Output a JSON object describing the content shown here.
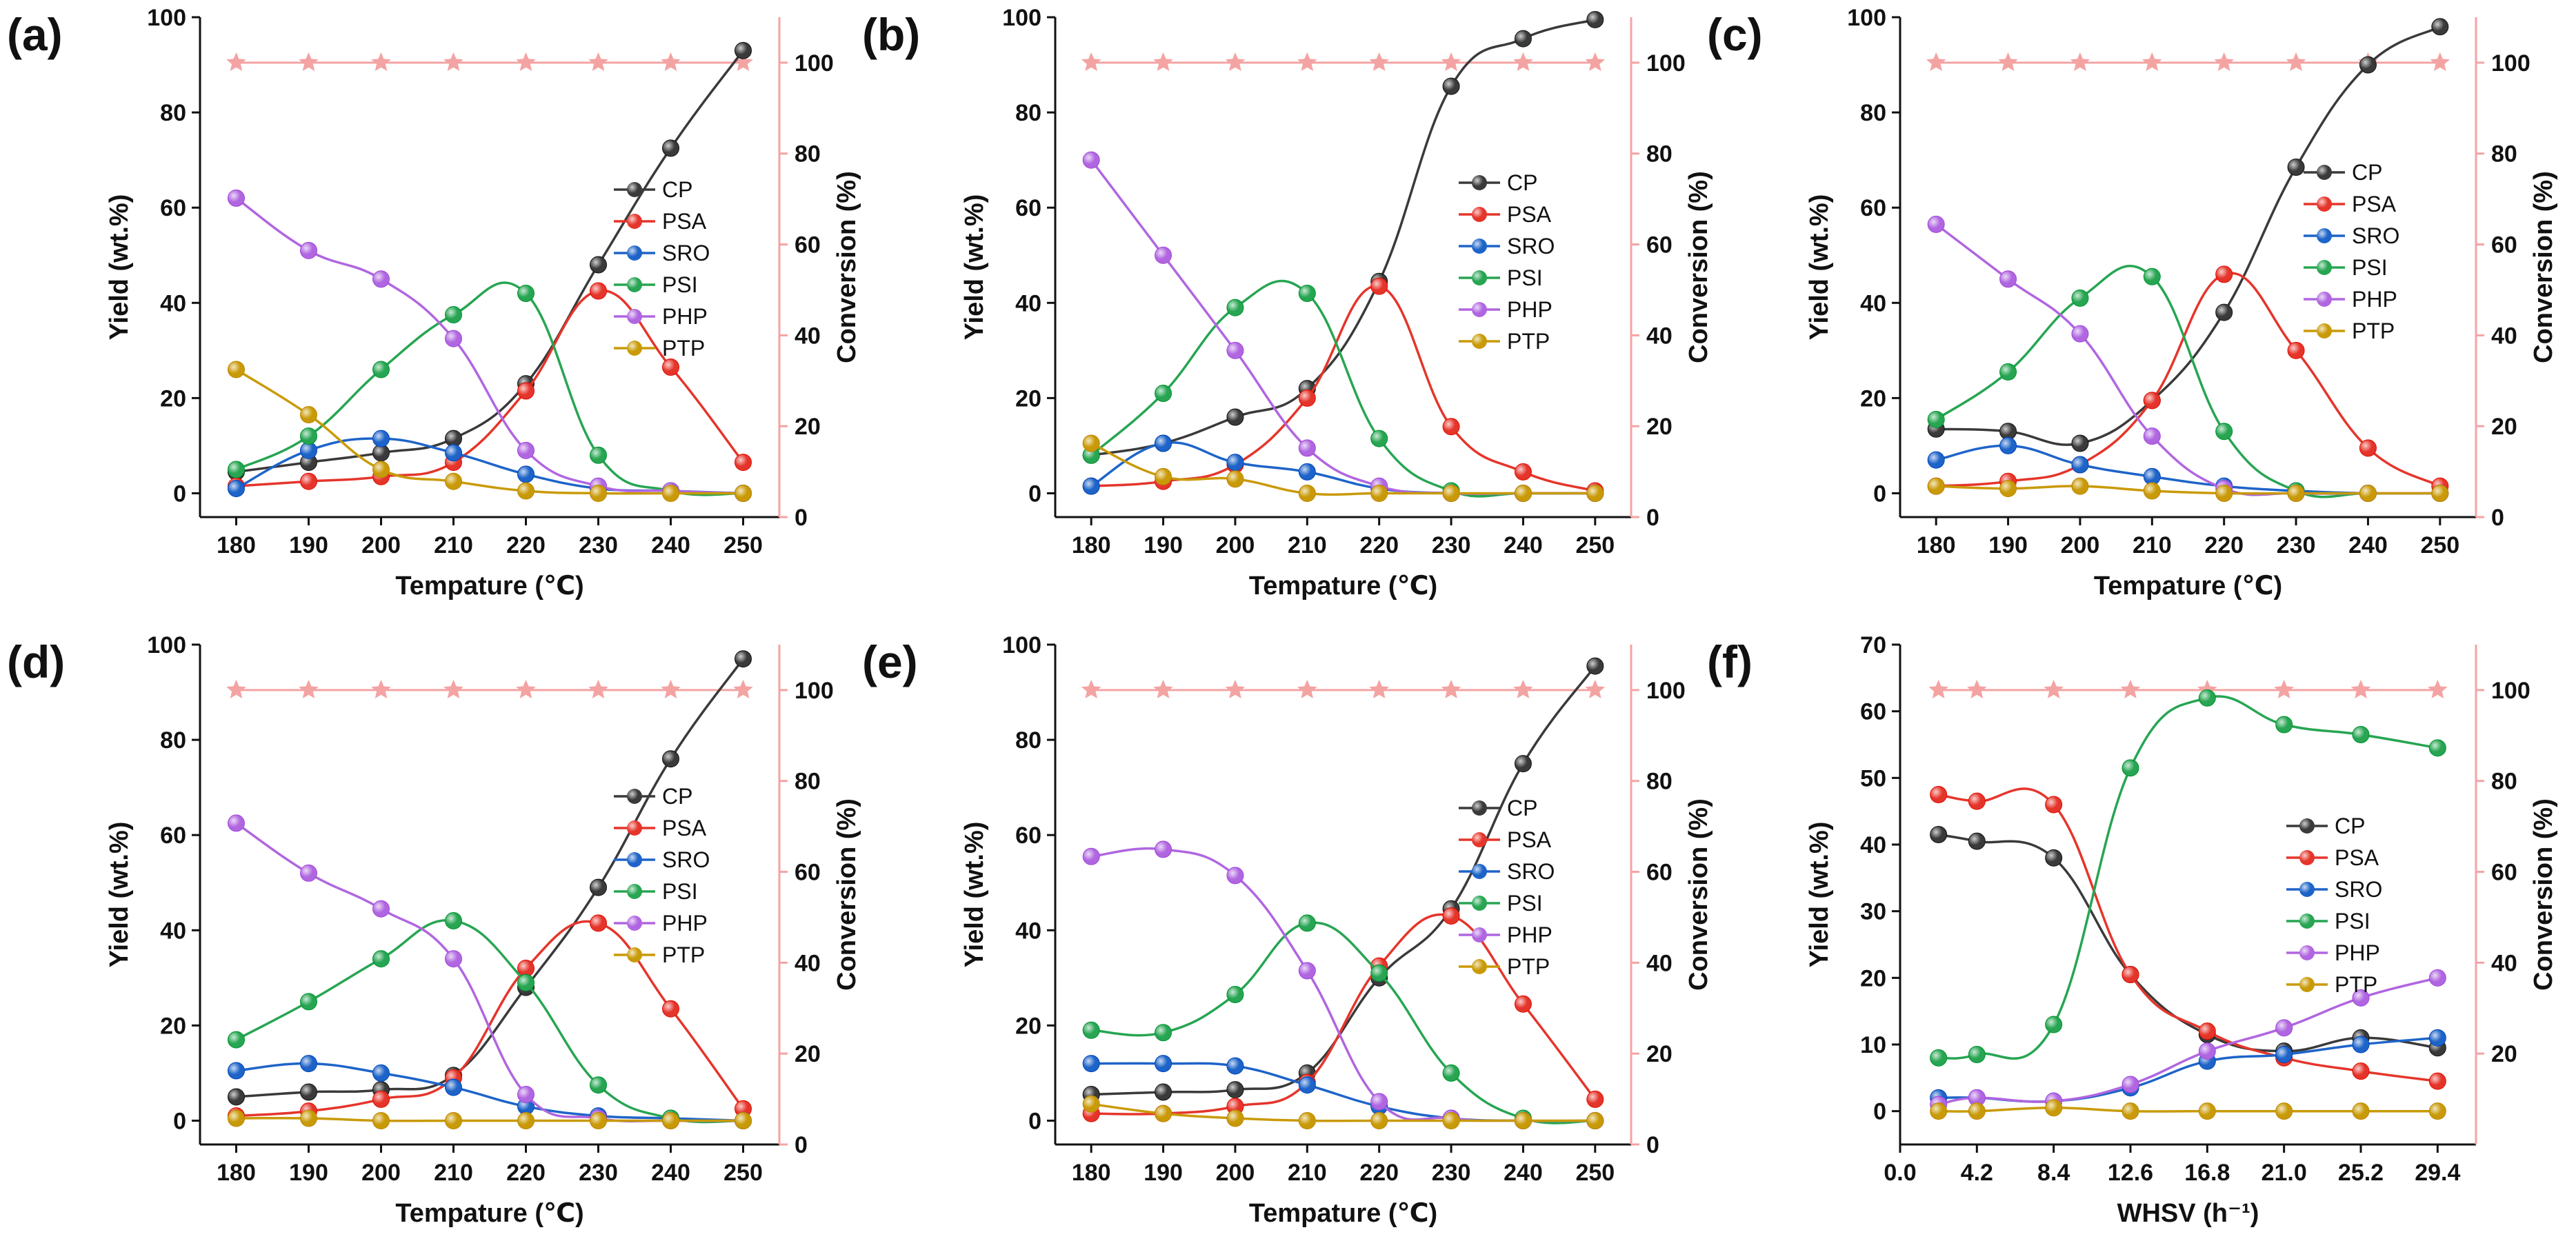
{
  "figure": {
    "series_colors": {
      "CP": "#3a3a3a",
      "PSA": "#e5352b",
      "SRO": "#1e64c8",
      "PSI": "#27a552",
      "PHP": "#b066e0",
      "PTP": "#c99a08"
    },
    "conversion_color": "#f4a3a3"
  },
  "chart_data": [
    {
      "panel": "(a)",
      "type": "line",
      "xlabel": "Tempature (℃)",
      "ylabel": "Yield (wt.%)",
      "y2label": "Conversion (%)",
      "x": [
        180,
        190,
        200,
        210,
        220,
        230,
        240,
        250
      ],
      "xticks": [
        "180",
        "190",
        "200",
        "210",
        "220",
        "230",
        "240",
        "250"
      ],
      "xlim": [
        175,
        255
      ],
      "ylim": [
        -5,
        100
      ],
      "yticks": [
        0,
        20,
        40,
        60,
        80,
        100
      ],
      "y2lim": [
        0,
        110
      ],
      "y2ticks": [
        0,
        20,
        40,
        60,
        80,
        100
      ],
      "legend": [
        "CP",
        "PSA",
        "SRO",
        "PSI",
        "PHP",
        "PTP"
      ],
      "series": [
        {
          "name": "CP",
          "values": [
            4.5,
            6.5,
            8.5,
            11.5,
            23,
            48,
            72.5,
            93
          ]
        },
        {
          "name": "PSA",
          "values": [
            1.5,
            2.5,
            3.5,
            6.5,
            21.5,
            42.5,
            26.5,
            6.5
          ]
        },
        {
          "name": "SRO",
          "values": [
            1,
            9,
            11.5,
            8.5,
            4,
            1,
            0.5,
            0
          ]
        },
        {
          "name": "PSI",
          "values": [
            5,
            12,
            26,
            37.5,
            42,
            8,
            0.5,
            0
          ]
        },
        {
          "name": "PHP",
          "values": [
            62,
            51,
            45,
            32.5,
            9,
            1.5,
            0.5,
            0
          ]
        },
        {
          "name": "PTP",
          "values": [
            26,
            16.5,
            5,
            2.5,
            0.5,
            0,
            0,
            0
          ]
        }
      ],
      "conversion": [
        100,
        100,
        100,
        100,
        100,
        100,
        100,
        100
      ]
    },
    {
      "panel": "(b)",
      "type": "line",
      "xlabel": "Tempature (℃)",
      "ylabel": "Yield (wt.%)",
      "y2label": "Conversion (%)",
      "x": [
        180,
        190,
        200,
        210,
        220,
        230,
        240,
        250
      ],
      "xticks": [
        "180",
        "190",
        "200",
        "210",
        "220",
        "230",
        "240",
        "250"
      ],
      "xlim": [
        175,
        255
      ],
      "ylim": [
        -5,
        100
      ],
      "yticks": [
        0,
        20,
        40,
        60,
        80,
        100
      ],
      "y2lim": [
        0,
        110
      ],
      "y2ticks": [
        0,
        20,
        40,
        60,
        80,
        100
      ],
      "legend": [
        "CP",
        "PSA",
        "SRO",
        "PSI",
        "PHP",
        "PTP"
      ],
      "series": [
        {
          "name": "CP",
          "values": [
            8,
            10.5,
            16,
            22,
            44.5,
            85.5,
            95.5,
            99.5
          ]
        },
        {
          "name": "PSA",
          "values": [
            1.5,
            2.5,
            6,
            20,
            43.5,
            14,
            4.5,
            0.5
          ]
        },
        {
          "name": "SRO",
          "values": [
            1.5,
            10.5,
            6.5,
            4.5,
            1,
            0,
            0,
            0
          ]
        },
        {
          "name": "PSI",
          "values": [
            8,
            21,
            39,
            42,
            11.5,
            0.5,
            0,
            0
          ]
        },
        {
          "name": "PHP",
          "values": [
            70,
            50,
            30,
            9.5,
            1.5,
            0,
            0,
            0
          ]
        },
        {
          "name": "PTP",
          "values": [
            10.5,
            3.5,
            3,
            0,
            0,
            0,
            0,
            0
          ]
        }
      ],
      "conversion": [
        100,
        100,
        100,
        100,
        100,
        100,
        100,
        100
      ]
    },
    {
      "panel": "(c)",
      "type": "line",
      "xlabel": "Tempature (℃)",
      "ylabel": "Yield (wt.%)",
      "y2label": "Conversion (%)",
      "x": [
        180,
        190,
        200,
        210,
        220,
        230,
        240,
        250
      ],
      "xticks": [
        "180",
        "190",
        "200",
        "210",
        "220",
        "230",
        "240",
        "250"
      ],
      "xlim": [
        175,
        255
      ],
      "ylim": [
        -5,
        100
      ],
      "yticks": [
        0,
        20,
        40,
        60,
        80,
        100
      ],
      "y2lim": [
        0,
        110
      ],
      "y2ticks": [
        0,
        20,
        40,
        60,
        80,
        100
      ],
      "legend": [
        "CP",
        "PSA",
        "SRO",
        "PSI",
        "PHP",
        "PTP"
      ],
      "series": [
        {
          "name": "CP",
          "values": [
            13.5,
            13,
            10.5,
            19.5,
            38,
            68.5,
            90,
            98
          ]
        },
        {
          "name": "PSA",
          "values": [
            1.5,
            2.5,
            6,
            19.5,
            46,
            30,
            9.5,
            1.5
          ]
        },
        {
          "name": "SRO",
          "values": [
            7,
            10,
            6,
            3.5,
            1.5,
            0.5,
            0,
            0
          ]
        },
        {
          "name": "PSI",
          "values": [
            15.5,
            25.5,
            41,
            45.5,
            13,
            0.5,
            0,
            0
          ]
        },
        {
          "name": "PHP",
          "values": [
            56.5,
            45,
            33.5,
            12,
            1,
            0,
            0,
            0
          ]
        },
        {
          "name": "PTP",
          "values": [
            1.5,
            1,
            1.5,
            0.5,
            0,
            0,
            0,
            0
          ]
        }
      ],
      "conversion": [
        100,
        100,
        100,
        100,
        100,
        100,
        100,
        100
      ]
    },
    {
      "panel": "(d)",
      "type": "line",
      "xlabel": "Tempature (℃)",
      "ylabel": "Yield (wt.%)",
      "y2label": "Conversion (%)",
      "x": [
        180,
        190,
        200,
        210,
        220,
        230,
        240,
        250
      ],
      "xticks": [
        "180",
        "190",
        "200",
        "210",
        "220",
        "230",
        "240",
        "250"
      ],
      "xlim": [
        175,
        255
      ],
      "ylim": [
        -5,
        100
      ],
      "yticks": [
        0,
        20,
        40,
        60,
        80,
        100
      ],
      "y2lim": [
        0,
        110
      ],
      "y2ticks": [
        0,
        20,
        40,
        60,
        80,
        100
      ],
      "legend": [
        "CP",
        "PSA",
        "SRO",
        "PSI",
        "PHP",
        "PTP"
      ],
      "series": [
        {
          "name": "CP",
          "values": [
            5,
            6,
            6.5,
            9.5,
            28,
            49,
            76,
            97
          ]
        },
        {
          "name": "PSA",
          "values": [
            1,
            2,
            4.5,
            9,
            32,
            41.5,
            23.5,
            2.5
          ]
        },
        {
          "name": "SRO",
          "values": [
            10.5,
            12,
            10,
            7,
            3,
            1,
            0.5,
            0
          ]
        },
        {
          "name": "PSI",
          "values": [
            17,
            25,
            34,
            42,
            29,
            7.5,
            0.5,
            0
          ]
        },
        {
          "name": "PHP",
          "values": [
            62.5,
            52,
            44.5,
            34,
            5.5,
            0.5,
            0,
            0
          ]
        },
        {
          "name": "PTP",
          "values": [
            0.5,
            0.5,
            0,
            0,
            0,
            0,
            0,
            0
          ]
        }
      ],
      "conversion": [
        100,
        100,
        100,
        100,
        100,
        100,
        100,
        100
      ]
    },
    {
      "panel": "(e)",
      "type": "line",
      "xlabel": "Tempature (℃)",
      "ylabel": "Yield (wt.%)",
      "y2label": "Conversion (%)",
      "x": [
        180,
        190,
        200,
        210,
        220,
        230,
        240,
        250
      ],
      "xticks": [
        "180",
        "190",
        "200",
        "210",
        "220",
        "230",
        "240",
        "250"
      ],
      "xlim": [
        175,
        255
      ],
      "ylim": [
        -5,
        100
      ],
      "yticks": [
        0,
        20,
        40,
        60,
        80,
        100
      ],
      "y2lim": [
        0,
        110
      ],
      "y2ticks": [
        0,
        20,
        40,
        60,
        80,
        100
      ],
      "legend": [
        "CP",
        "PSA",
        "SRO",
        "PSI",
        "PHP",
        "PTP"
      ],
      "series": [
        {
          "name": "CP",
          "values": [
            5.5,
            6,
            6.5,
            10,
            30,
            44.5,
            75,
            95.5
          ]
        },
        {
          "name": "PSA",
          "values": [
            1.5,
            1.5,
            3,
            8,
            32.5,
            43,
            24.5,
            4.5
          ]
        },
        {
          "name": "SRO",
          "values": [
            12,
            12,
            11.5,
            7.5,
            3,
            0.5,
            0,
            0
          ]
        },
        {
          "name": "PSI",
          "values": [
            19,
            18.5,
            26.5,
            41.5,
            31,
            10,
            0.5,
            0
          ]
        },
        {
          "name": "PHP",
          "values": [
            55.5,
            57,
            51.5,
            31.5,
            4,
            0.5,
            0,
            0
          ]
        },
        {
          "name": "PTP",
          "values": [
            3.5,
            1.5,
            0.5,
            0,
            0,
            0,
            0,
            0
          ]
        }
      ],
      "conversion": [
        100,
        100,
        100,
        100,
        100,
        100,
        100,
        100
      ]
    },
    {
      "panel": "(f)",
      "type": "line",
      "xlabel": "WHSV (h⁻¹)",
      "ylabel": "Yield (wt.%)",
      "y2label": "Conversion (%)",
      "x": [
        2.1,
        4.2,
        8.4,
        12.6,
        16.8,
        21.0,
        25.2,
        29.4
      ],
      "xticks": [
        "0.0",
        "4.2",
        "8.4",
        "12.6",
        "16.8",
        "21.0",
        "25.2",
        "29.4"
      ],
      "xtick_values": [
        0,
        4.2,
        8.4,
        12.6,
        16.8,
        21,
        25.2,
        29.4
      ],
      "xlim": [
        0,
        31.5
      ],
      "ylim": [
        -5,
        70
      ],
      "yticks": [
        0,
        10,
        20,
        30,
        40,
        50,
        60,
        70
      ],
      "y2lim": [
        0,
        110
      ],
      "y2ticks": [
        20,
        40,
        60,
        80,
        100
      ],
      "legend": [
        "CP",
        "PSA",
        "SRO",
        "PSI",
        "PHP",
        "PTP"
      ],
      "series": [
        {
          "name": "CP",
          "values": [
            41.5,
            40.5,
            38,
            20.5,
            11.5,
            9,
            11,
            9.5
          ]
        },
        {
          "name": "PSA",
          "values": [
            47.5,
            46.5,
            46,
            20.5,
            12,
            8,
            6,
            4.5
          ]
        },
        {
          "name": "SRO",
          "values": [
            2,
            2,
            1.5,
            3.5,
            7.5,
            8.5,
            10,
            11
          ]
        },
        {
          "name": "PSI",
          "values": [
            8,
            8.5,
            13,
            51.5,
            62,
            58,
            56.5,
            54.5
          ]
        },
        {
          "name": "PHP",
          "values": [
            1,
            2,
            1.5,
            4,
            9,
            12.5,
            17,
            20
          ]
        },
        {
          "name": "PTP",
          "values": [
            0,
            0,
            0.5,
            0,
            0,
            0,
            0,
            0
          ]
        }
      ],
      "conversion": [
        100,
        100,
        100,
        100,
        100,
        100,
        100,
        100
      ]
    }
  ]
}
